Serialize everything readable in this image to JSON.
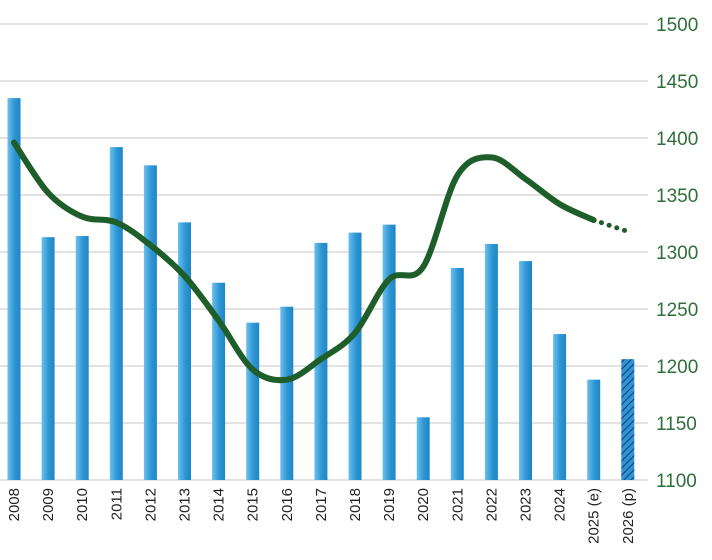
{
  "chart_data": {
    "type": "bar",
    "categories": [
      "2008",
      "2009",
      "2010",
      "2011",
      "2012",
      "2013",
      "2014",
      "2015",
      "2016",
      "2017",
      "2018",
      "2019",
      "2020",
      "2021",
      "2022",
      "2023",
      "2024",
      "2025 (e)",
      "2026 (p)"
    ],
    "series": [
      {
        "values": [
          1435,
          1313,
          1314,
          1392,
          1376,
          1326,
          1273,
          1238,
          1252,
          1308,
          1317,
          1324,
          1155,
          1286,
          1307,
          1292,
          1228,
          1188,
          1206
        ],
        "style": [
          "solid",
          "solid",
          "solid",
          "solid",
          "solid",
          "solid",
          "solid",
          "solid",
          "solid",
          "solid",
          "solid",
          "solid",
          "solid",
          "solid",
          "solid",
          "solid",
          "solid",
          "solid",
          "hatched"
        ]
      },
      {
        "type": "line",
        "values": [
          1396,
          1352,
          1331,
          1326,
          1306,
          1279,
          1240,
          1197,
          1188,
          1206,
          1229,
          1276,
          1287,
          1367,
          1383,
          1364,
          1342,
          1328,
          1318
        ],
        "style": [
          "solid",
          "solid",
          "solid",
          "solid",
          "solid",
          "solid",
          "solid",
          "solid",
          "solid",
          "solid",
          "solid",
          "solid",
          "solid",
          "solid",
          "solid",
          "solid",
          "solid",
          "solid",
          "dotted"
        ]
      }
    ],
    "y_axis": {
      "position": "right",
      "ylim": [
        1100,
        1500
      ],
      "ticks": [
        1100,
        1150,
        1200,
        1250,
        1300,
        1350,
        1400,
        1450,
        1500
      ]
    },
    "grid": true,
    "colors": {
      "bar": "#2e95d3",
      "bar_light": "#6cc0ec",
      "line": "#1e5e2a",
      "grid": "#c4c4c4",
      "tick_text": "#2f6f3a"
    }
  }
}
